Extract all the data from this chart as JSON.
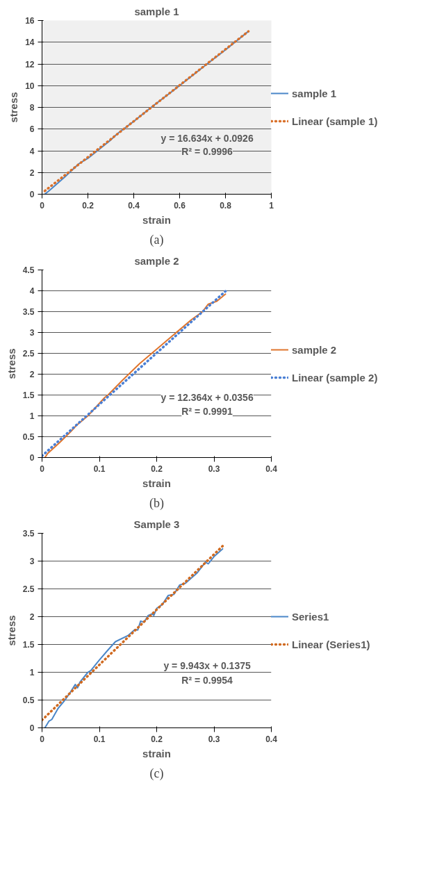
{
  "chart_data": [
    {
      "type": "line",
      "title": "sample 1",
      "xlabel": "strain",
      "ylabel": "stress",
      "xlim": [
        0,
        1
      ],
      "xticks": [
        0,
        0.2,
        0.4,
        0.6,
        0.8,
        1
      ],
      "ylim": [
        0,
        16
      ],
      "yticks": [
        0,
        2,
        4,
        6,
        8,
        10,
        12,
        14,
        16
      ],
      "grid": "y",
      "legend": "right",
      "marker": "none",
      "annotations": [
        "y = 16.634x + 0.0926",
        "R² = 0.9996",
        "(a)"
      ],
      "series": [
        {
          "name": "sample 1",
          "color": "#4a86c8",
          "line_style": "solid",
          "x": [
            0.012,
            0.03,
            0.1,
            0.16,
            0.2,
            0.3,
            0.33,
            0.4,
            0.47,
            0.6,
            0.72,
            0.8,
            0.9
          ],
          "values": [
            0,
            0.3,
            1.6,
            2.8,
            3.3,
            5.0,
            5.6,
            6.7,
            7.9,
            10,
            12,
            13.3,
            15
          ]
        },
        {
          "name": "Linear (sample 1)",
          "color": "#d9702a",
          "line_style": "dotted",
          "x": [
            0.012,
            0.9
          ],
          "values": [
            0.3,
            15
          ]
        }
      ]
    },
    {
      "type": "line",
      "title": "sample 2",
      "xlabel": "strain",
      "ylabel": "stress",
      "xlim": [
        0,
        0.4
      ],
      "xticks": [
        0,
        0.1,
        0.2,
        0.3,
        0.4
      ],
      "ylim": [
        0,
        4.5
      ],
      "yticks": [
        0,
        0.5,
        1,
        1.5,
        2,
        2.5,
        3,
        3.5,
        4,
        4.5
      ],
      "grid": "y",
      "legend": "right",
      "marker": "none",
      "annotations": [
        "y = 12.364x + 0.0356",
        "R² = 0.9991",
        "(b)"
      ],
      "series": [
        {
          "name": "sample 2",
          "color": "#e0752d",
          "line_style": "solid",
          "x": [
            0.005,
            0.01,
            0.03,
            0.05,
            0.06,
            0.08,
            0.1,
            0.11,
            0.115,
            0.14,
            0.17,
            0.2,
            0.23,
            0.26,
            0.28,
            0.29,
            0.305,
            0.32
          ],
          "values": [
            0,
            0.1,
            0.35,
            0.62,
            0.77,
            1.0,
            1.3,
            1.45,
            1.5,
            1.85,
            2.25,
            2.6,
            2.95,
            3.3,
            3.5,
            3.68,
            3.75,
            3.92
          ]
        },
        {
          "name": "Linear (sample 2)",
          "color": "#4a7fd4",
          "line_style": "dotted",
          "x": [
            0,
            0.32
          ],
          "values": [
            0.04,
            3.99
          ]
        }
      ]
    },
    {
      "type": "line",
      "title": "Sample 3",
      "xlabel": "strain",
      "ylabel": "stress",
      "xlim": [
        0,
        0.4
      ],
      "xticks": [
        0,
        0.1,
        0.2,
        0.3,
        0.4
      ],
      "ylim": [
        0,
        3.5
      ],
      "yticks": [
        0,
        0.5,
        1,
        1.5,
        2,
        2.5,
        3,
        3.5
      ],
      "grid": "y",
      "legend": "right",
      "marker": "none",
      "annotations": [
        "y = 9.943x + 0.1375",
        "R² = 0.9954",
        "(c)"
      ],
      "series": [
        {
          "name": "Series1",
          "color": "#4a86c8",
          "line_style": "solid",
          "x": [
            0.005,
            0.012,
            0.017,
            0.028,
            0.04,
            0.05,
            0.058,
            0.062,
            0.066,
            0.08,
            0.085,
            0.1,
            0.115,
            0.128,
            0.15,
            0.162,
            0.167,
            0.172,
            0.178,
            0.185,
            0.192,
            0.195,
            0.2,
            0.21,
            0.22,
            0.23,
            0.24,
            0.25,
            0.27,
            0.285,
            0.29,
            0.3,
            0.315
          ],
          "values": [
            0,
            0.12,
            0.15,
            0.35,
            0.5,
            0.65,
            0.78,
            0.72,
            0.82,
            1.0,
            1.03,
            1.22,
            1.4,
            1.55,
            1.66,
            1.77,
            1.76,
            1.92,
            1.9,
            2.02,
            2.05,
            2.02,
            2.15,
            2.22,
            2.38,
            2.4,
            2.57,
            2.6,
            2.78,
            2.98,
            2.95,
            3.08,
            3.22
          ]
        },
        {
          "name": "Linear (Series1)",
          "color": "#d06a20",
          "line_style": "dotted",
          "x": [
            0,
            0.315
          ],
          "values": [
            0.14,
            3.27
          ]
        }
      ]
    }
  ]
}
